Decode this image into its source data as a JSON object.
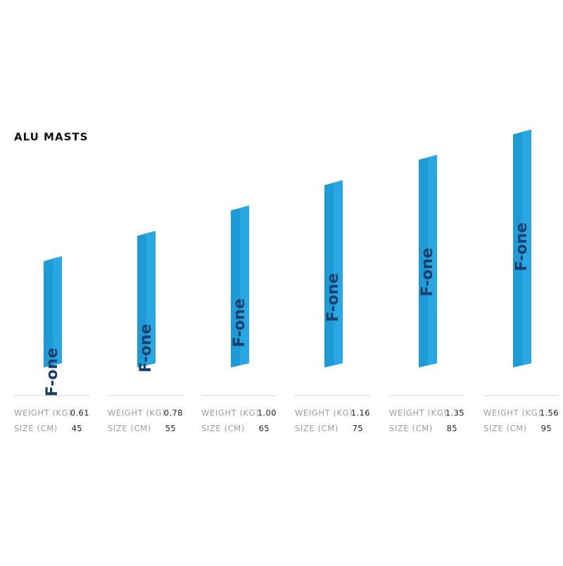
{
  "title": "ALU MASTS",
  "brand": "F-one",
  "masts": [
    {
      "weight_label": "WEIGHT (KG)",
      "weight": "0.61",
      "size_label": "SIZE (CM)",
      "size": 45
    },
    {
      "weight_label": "WEIGHT (KG)",
      "weight": "0.78",
      "size_label": "SIZE (CM)",
      "size": 55
    },
    {
      "weight_label": "WEIGHT (KG)",
      "weight": "1.00",
      "size_label": "SIZE (CM)",
      "size": 65
    },
    {
      "weight_label": "WEIGHT (KG)",
      "weight": "1.16",
      "size_label": "SIZE (CM)",
      "size": 75
    },
    {
      "weight_label": "WEIGHT (KG)",
      "weight": "1.35",
      "size_label": "SIZE (CM)",
      "size": 85
    },
    {
      "weight_label": "WEIGHT (KG)",
      "weight": "1.56",
      "size_label": "SIZE (CM)",
      "size": 95
    }
  ]
}
